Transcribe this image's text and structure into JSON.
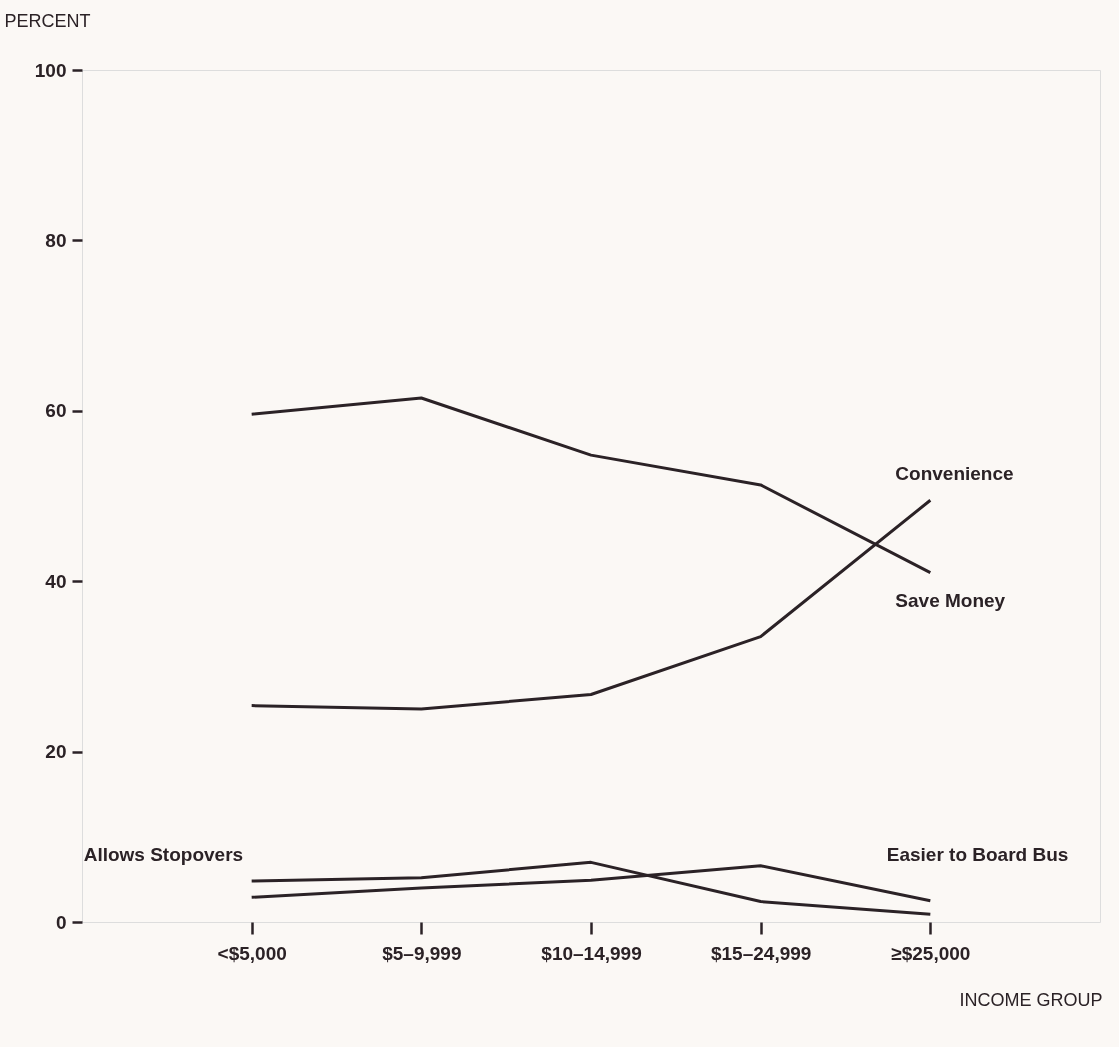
{
  "chart_data": {
    "type": "line",
    "xlabel": "INCOME GROUP",
    "ylabel": "PERCENT",
    "categories": [
      "<$5,000",
      "$5–9,999",
      "$10–14,999",
      "$15–24,999",
      "≥$25,000"
    ],
    "ylim": [
      0,
      100
    ],
    "yticks": [
      0,
      20,
      40,
      60,
      80,
      100
    ],
    "grid": false,
    "marker": "none",
    "line_style": "solid",
    "series": [
      {
        "name": "Convenience",
        "color": "#2b2226",
        "values": [
          25.4,
          25,
          26.7,
          33.5,
          49.5
        ]
      },
      {
        "name": "Save Money",
        "color": "#2b2226",
        "values": [
          59.6,
          61.5,
          54.8,
          51.3,
          41
        ]
      },
      {
        "name": "Allows Stopovers",
        "color": "#2b2226",
        "values": [
          4.8,
          5.2,
          7.0,
          2.4,
          0.9
        ]
      },
      {
        "name": "Easier to Board Bus",
        "color": "#2b2226",
        "values": [
          2.9,
          4.0,
          4.9,
          6.6,
          2.5
        ]
      }
    ]
  }
}
